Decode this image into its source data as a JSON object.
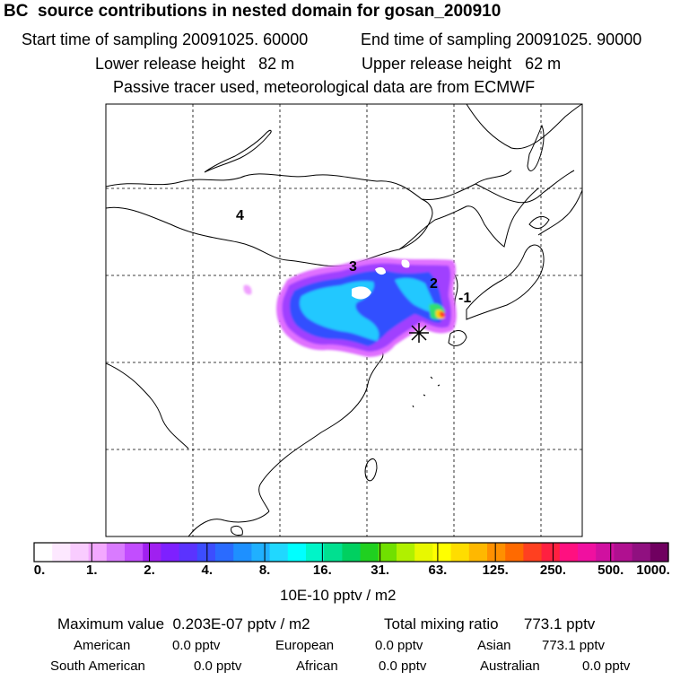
{
  "header": {
    "title": "BC  source contributions in nested domain for gosan_200910",
    "start_label": "Start time of sampling 20091025. 60000",
    "end_label": "End time of sampling 20091025. 90000",
    "lower_label": "Lower release height   82 m",
    "upper_label": "Upper release height   62 m",
    "tracer_label": "Passive tracer used, meteorological data are from ECMWF"
  },
  "chart_data": {
    "type": "heatmap",
    "title": "BC  source contributions in nested domain for gosan_200910",
    "colorbar": {
      "ticks": [
        "0.",
        "1.",
        "2.",
        "4.",
        "8.",
        "16.",
        "31.",
        "63.",
        "125.",
        "250.",
        "500.",
        "1000."
      ],
      "unit": "10E-10 pptv / m2",
      "colors": [
        "#ffffff",
        "#fde8ff",
        "#f9ccff",
        "#f3a8ff",
        "#d97bff",
        "#c24dff",
        "#a020f0",
        "#7e20ff",
        "#5b33ff",
        "#3c4dff",
        "#2a6bff",
        "#1e90ff",
        "#20b0ff",
        "#20d8ff",
        "#00ffff",
        "#00f5c8",
        "#00e090",
        "#00d060",
        "#20d020",
        "#70e000",
        "#b0f000",
        "#e8f800",
        "#ffff00",
        "#ffdd00",
        "#ffb800",
        "#ff9000",
        "#ff6a00",
        "#ff4020",
        "#ff2040",
        "#ff1080",
        "#f010a0",
        "#d010a0",
        "#b01090",
        "#901080",
        "#700060"
      ]
    },
    "region_labels": [
      "4",
      "3",
      "2",
      "-1"
    ],
    "receptor": "gosan"
  },
  "stats": {
    "max_label": "Maximum value  0.203E-07 pptv / m2",
    "total_label": "Total mixing ratio      773.1 pptv",
    "american_label": "American",
    "american_value": "0.0 pptv",
    "european_label": "European",
    "european_value": "0.0 pptv",
    "asian_label": "Asian",
    "asian_value": "773.1 pptv",
    "south_american_label": "South American",
    "south_american_value": "0.0 pptv",
    "african_label": "African",
    "african_value": "0.0 pptv",
    "australian_label": "Australian",
    "australian_value": "0.0 pptv"
  }
}
